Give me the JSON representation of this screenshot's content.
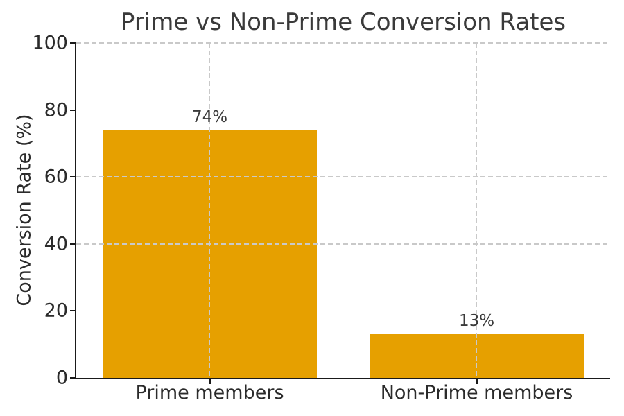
{
  "chart_data": {
    "type": "bar",
    "title": "Prime vs Non-Prime Conversion Rates",
    "ylabel": "Conversion Rate (%)",
    "xlabel": "",
    "categories": [
      "Prime members",
      "Non-Prime members"
    ],
    "values": [
      74,
      13
    ],
    "value_labels": [
      "74%",
      "13%"
    ],
    "ylim": [
      0,
      100
    ],
    "yticks": [
      0,
      20,
      40,
      60,
      80,
      100
    ],
    "grid": true,
    "grid_style": "dashed",
    "legend_position": "none",
    "colors": {
      "bar": "#E6A000",
      "grid": "#c9c9c9",
      "axis": "#1a1a1a",
      "tick_text": "#2b2b2b",
      "title_text": "#3a3a3a",
      "background": "#ffffff"
    }
  }
}
